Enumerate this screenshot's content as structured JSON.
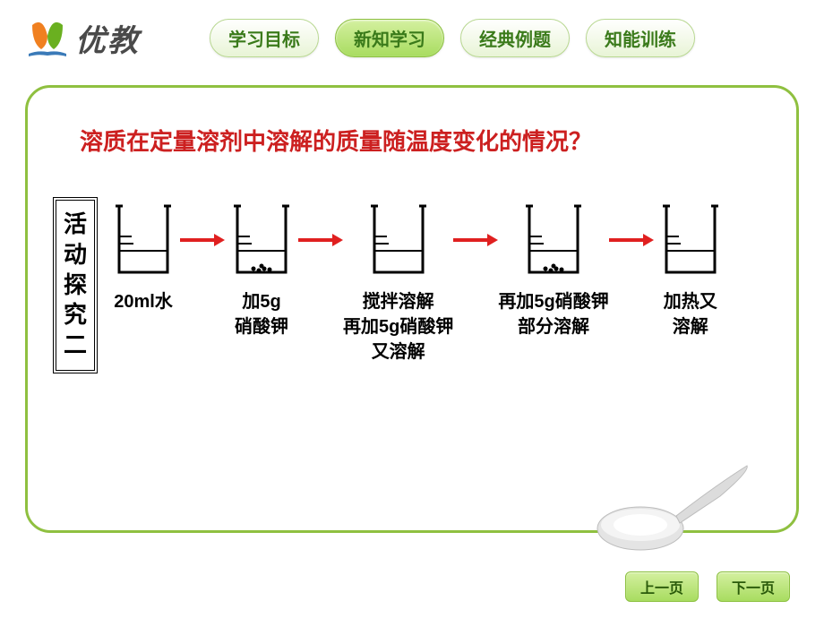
{
  "logo": {
    "text": "优教"
  },
  "tabs": [
    {
      "label": "学习目标",
      "active": false
    },
    {
      "label": "新知学习",
      "active": true
    },
    {
      "label": "经典例题",
      "active": false
    },
    {
      "label": "知能训练",
      "active": false
    }
  ],
  "question": "溶质在定量溶剂中溶解的质量随温度变化的情况？",
  "activity_label": "活动探究二",
  "steps": [
    {
      "label_l1": "20ml水",
      "label_l2": "",
      "label_l3": "",
      "particles": false,
      "arrow_after": true
    },
    {
      "label_l1": "加5g",
      "label_l2": "硝酸钾",
      "label_l3": "",
      "particles": true,
      "arrow_after": true
    },
    {
      "label_l1": "搅拌溶解",
      "label_l2": "再加5g硝酸钾",
      "label_l3": "又溶解",
      "particles": false,
      "arrow_after": true
    },
    {
      "label_l1": "再加5g硝酸钾",
      "label_l2": "部分溶解",
      "label_l3": "",
      "particles": true,
      "arrow_after": true
    },
    {
      "label_l1": "加热又",
      "label_l2": "溶解",
      "label_l3": "",
      "particles": false,
      "arrow_after": false
    }
  ],
  "nav": {
    "prev": "上一页",
    "next": "下一页"
  },
  "colors": {
    "frame_border": "#8fc040",
    "question": "#cc2020",
    "arrow": "#e02020",
    "tab_active_bg": "#a8dc60",
    "tab_text": "#3a7a1a"
  }
}
